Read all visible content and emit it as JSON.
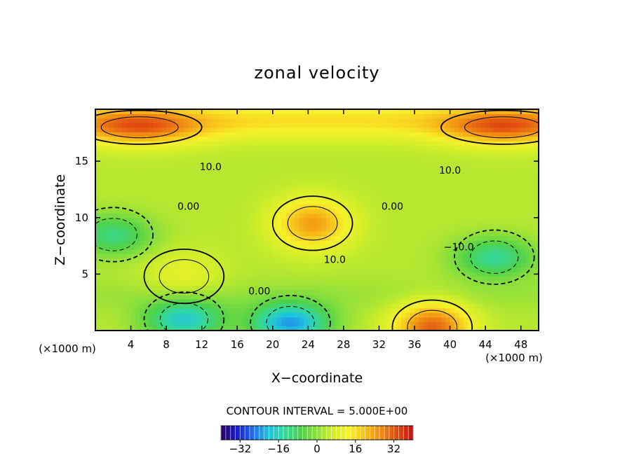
{
  "chart_data": {
    "type": "heatmap",
    "title": "zonal velocity",
    "xlabel": "X−coordinate",
    "ylabel": "Z−coordinate",
    "x_unit_left": "(×1000 m)",
    "x_unit_right": "(×1000 m)",
    "xlim": [
      0,
      50
    ],
    "ylim": [
      0,
      19.6
    ],
    "x_ticks": [
      4,
      8,
      12,
      16,
      20,
      24,
      28,
      32,
      36,
      40,
      44,
      48
    ],
    "x_tick_labels": [
      "4",
      "8",
      "12",
      "16",
      "20",
      "24",
      "28",
      "32",
      "36",
      "40",
      "44",
      "48"
    ],
    "y_ticks": [
      5,
      10,
      15
    ],
    "y_tick_labels": [
      "5",
      "10",
      "15"
    ],
    "contour_interval_label": "CONTOUR INTERVAL = 5.000E+00",
    "contour_labels": [
      {
        "text": "10.0",
        "x": 13,
        "y": 14.5
      },
      {
        "text": "0.00",
        "x": 10.5,
        "y": 11.0
      },
      {
        "text": "10.0",
        "x": 27.0,
        "y": 6.3
      },
      {
        "text": "0.00",
        "x": 18.5,
        "y": 3.5
      },
      {
        "text": "0.00",
        "x": 33.5,
        "y": 11.0
      },
      {
        "text": "10.0",
        "x": 40.0,
        "y": 14.2
      },
      {
        "text": "−10.0",
        "x": 41.0,
        "y": 7.4
      }
    ],
    "colorbar": {
      "range": [
        -40,
        40
      ],
      "ticks": [
        -32,
        -16,
        0,
        16,
        32
      ],
      "tick_labels": [
        "−32",
        "−16",
        "0",
        "16",
        "32"
      ],
      "colors": [
        "#2a0060",
        "#1a1acc",
        "#1f6ee8",
        "#1fc4e0",
        "#33d99a",
        "#4fd14a",
        "#8ee03a",
        "#d2ee2a",
        "#f8f12a",
        "#f7c21c",
        "#f08a12",
        "#e24a10",
        "#c21010"
      ]
    },
    "features": [
      {
        "kind": "max",
        "x": 24.5,
        "y": 9.5,
        "value": 28
      },
      {
        "kind": "max",
        "x": 5,
        "y": 18,
        "value": 26
      },
      {
        "kind": "max",
        "x": 46,
        "y": 18,
        "value": 26
      },
      {
        "kind": "max",
        "x": 38,
        "y": 0.3,
        "value": 36
      },
      {
        "kind": "min",
        "x": 22,
        "y": 0.7,
        "value": -28
      },
      {
        "kind": "min",
        "x": 10,
        "y": 1.0,
        "value": -22
      },
      {
        "kind": "min",
        "x": 2,
        "y": 8.5,
        "value": -14
      },
      {
        "kind": "min",
        "x": 45,
        "y": 6.5,
        "value": -16
      },
      {
        "kind": "max",
        "x": 10,
        "y": 4.8,
        "value": 12
      }
    ]
  }
}
